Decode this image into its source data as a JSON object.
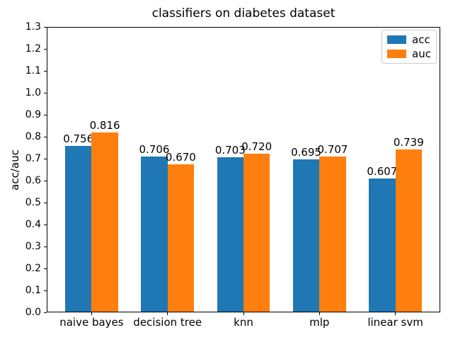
{
  "chart_data": {
    "type": "bar",
    "title": "classifiers on diabetes dataset",
    "xlabel": "",
    "ylabel": "acc/auc",
    "categories": [
      "naive bayes",
      "decision tree",
      "knn",
      "mlp",
      "linear svm"
    ],
    "series": [
      {
        "name": "acc",
        "color": "#1f77b4",
        "values": [
          0.756,
          0.706,
          0.703,
          0.695,
          0.607
        ],
        "labels": [
          "0.756",
          "0.706",
          "0.703",
          "0.695",
          "0.607"
        ]
      },
      {
        "name": "auc",
        "color": "#ff7f0e",
        "values": [
          0.816,
          0.67,
          0.72,
          0.707,
          0.739
        ],
        "labels": [
          "0.816",
          "0.670",
          "0.720",
          "0.707",
          "0.739"
        ]
      }
    ],
    "ylim": [
      0.0,
      1.3
    ],
    "yticks": [
      "0.0",
      "0.1",
      "0.2",
      "0.3",
      "0.4",
      "0.5",
      "0.6",
      "0.7",
      "0.8",
      "0.9",
      "1.0",
      "1.1",
      "1.2",
      "1.3"
    ],
    "legend": {
      "position": "upper right",
      "entries": [
        "acc",
        "auc"
      ]
    },
    "grid": false
  }
}
